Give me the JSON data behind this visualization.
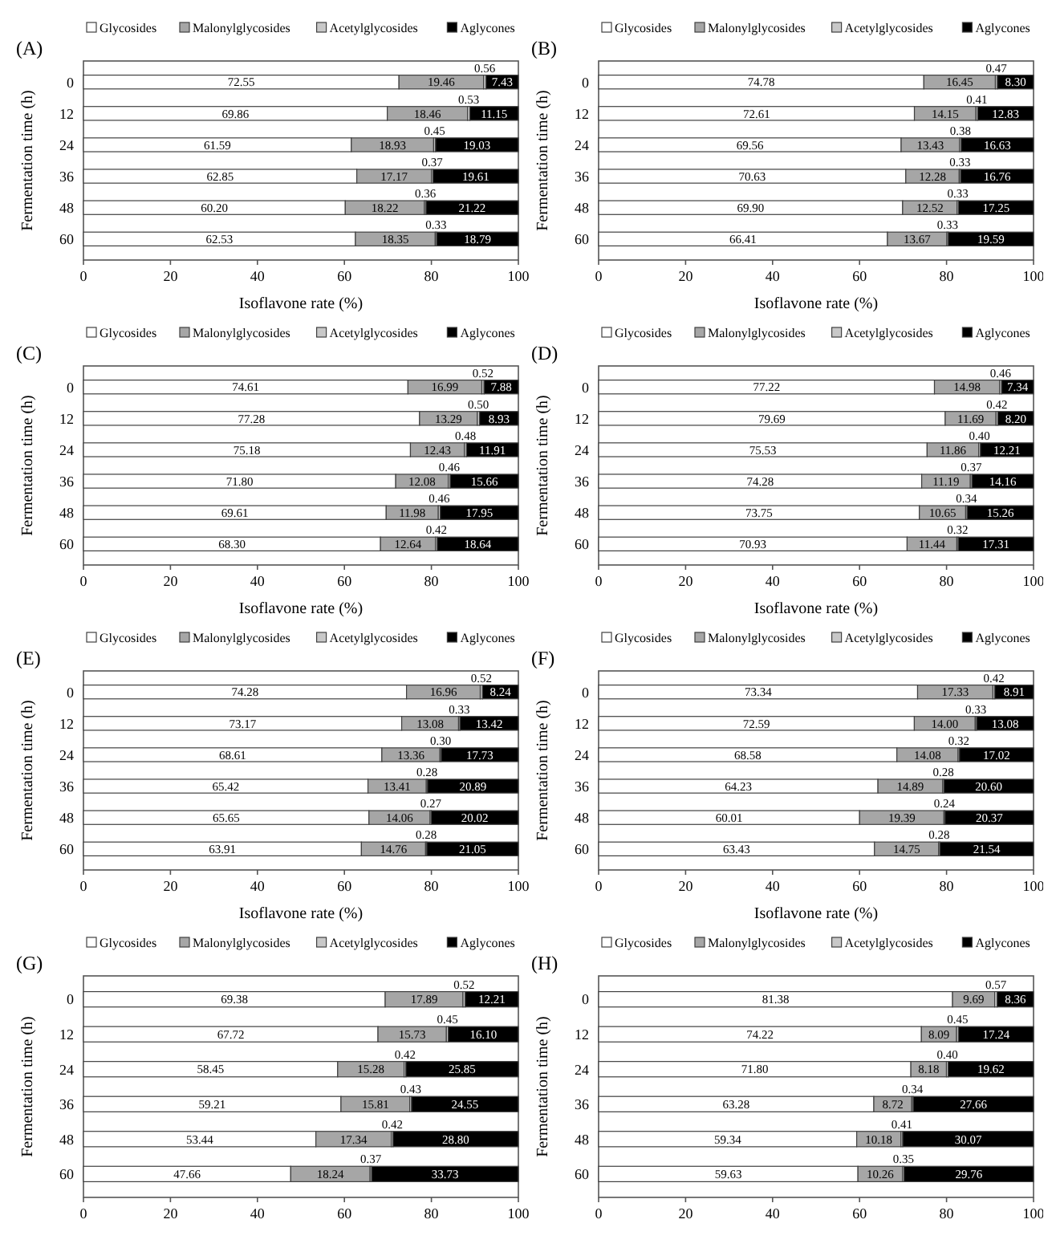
{
  "chart_data": [
    {
      "type": "bar",
      "title": "(A)",
      "orientation": "horizontal",
      "stacked": true,
      "legend": "top",
      "grid": false,
      "xlabel": "Isoflavone rate (%)",
      "ylabel": "Fermentation time (h)",
      "categories": [
        "0",
        "12",
        "24",
        "36",
        "48",
        "60"
      ],
      "xlim": [
        0,
        100
      ],
      "xticks": [
        0,
        20,
        40,
        60,
        80,
        100
      ],
      "series": [
        {
          "name": "Glycosides",
          "color": "#ffffff",
          "values": [
            72.55,
            69.86,
            61.59,
            62.85,
            60.2,
            62.53
          ],
          "value_labels": [
            "72.55",
            "69.86",
            "61.59",
            "62.85",
            "60.20",
            "62.53"
          ]
        },
        {
          "name": "Malonylglycosides",
          "color": "#a6a6a6",
          "values": [
            19.46,
            18.46,
            18.93,
            17.17,
            18.22,
            18.35
          ],
          "value_labels": [
            "19.46",
            "18.46",
            "18.93",
            "17.17",
            "18.22",
            "18.35"
          ]
        },
        {
          "name": "Acetylglycosides",
          "color": "#c8c8c8",
          "values": [
            0.56,
            0.53,
            0.45,
            0.37,
            0.36,
            0.33
          ],
          "value_labels": [
            "0.56",
            "0.53",
            "0.45",
            "0.37",
            "0.36",
            "0.33"
          ]
        },
        {
          "name": "Aglycones",
          "color": "#000000",
          "values": [
            7.43,
            11.15,
            19.03,
            19.61,
            21.22,
            18.79
          ],
          "value_labels": [
            "7.43",
            "11.15",
            "19.03",
            "19.61",
            "21.22",
            "18.79"
          ]
        }
      ]
    },
    {
      "type": "bar",
      "title": "(B)",
      "orientation": "horizontal",
      "stacked": true,
      "legend": "top",
      "grid": false,
      "xlabel": "Isoflavone rate (%)",
      "ylabel": "Fermentation time (h)",
      "categories": [
        "0",
        "12",
        "24",
        "36",
        "48",
        "60"
      ],
      "xlim": [
        0,
        100
      ],
      "xticks": [
        0,
        20,
        40,
        60,
        80,
        100
      ],
      "series": [
        {
          "name": "Glycosides",
          "color": "#ffffff",
          "values": [
            74.78,
            72.61,
            69.56,
            70.63,
            69.9,
            66.41
          ],
          "value_labels": [
            "74.78",
            "72.61",
            "69.56",
            "70.63",
            "69.90",
            "66.41"
          ]
        },
        {
          "name": "Malonylglycosides",
          "color": "#a6a6a6",
          "values": [
            16.45,
            14.15,
            13.43,
            12.28,
            12.52,
            13.67
          ],
          "value_labels": [
            "16.45",
            "14.15",
            "13.43",
            "12.28",
            "12.52",
            "13.67"
          ]
        },
        {
          "name": "Acetylglycosides",
          "color": "#c8c8c8",
          "values": [
            0.47,
            0.41,
            0.38,
            0.33,
            0.33,
            0.33
          ],
          "value_labels": [
            "0.47",
            "0.41",
            "0.38",
            "0.33",
            "0.33",
            "0.33"
          ]
        },
        {
          "name": "Aglycones",
          "color": "#000000",
          "values": [
            8.3,
            12.83,
            16.63,
            16.76,
            17.25,
            19.59
          ],
          "value_labels": [
            "8.30",
            "12.83",
            "16.63",
            "16.76",
            "17.25",
            "19.59"
          ]
        }
      ]
    },
    {
      "type": "bar",
      "title": "(C)",
      "orientation": "horizontal",
      "stacked": true,
      "legend": "top",
      "grid": false,
      "xlabel": "Isoflavone rate (%)",
      "ylabel": "Fermentation time (h)",
      "categories": [
        "0",
        "12",
        "24",
        "36",
        "48",
        "60"
      ],
      "xlim": [
        0,
        100
      ],
      "xticks": [
        0,
        20,
        40,
        60,
        80,
        100
      ],
      "series": [
        {
          "name": "Glycosides",
          "color": "#ffffff",
          "values": [
            74.61,
            77.28,
            75.18,
            71.8,
            69.61,
            68.3
          ],
          "value_labels": [
            "74.61",
            "77.28",
            "75.18",
            "71.80",
            "69.61",
            "68.30"
          ]
        },
        {
          "name": "Malonylglycosides",
          "color": "#a6a6a6",
          "values": [
            16.99,
            13.29,
            12.43,
            12.08,
            11.98,
            12.64
          ],
          "value_labels": [
            "16.99",
            "13.29",
            "12.43",
            "12.08",
            "11.98",
            "12.64"
          ]
        },
        {
          "name": "Acetylglycosides",
          "color": "#c8c8c8",
          "values": [
            0.52,
            0.5,
            0.48,
            0.46,
            0.46,
            0.42
          ],
          "value_labels": [
            "0.52",
            "0.50",
            "0.48",
            "0.46",
            "0.46",
            "0.42"
          ]
        },
        {
          "name": "Aglycones",
          "color": "#000000",
          "values": [
            7.88,
            8.93,
            11.91,
            15.66,
            17.95,
            18.64
          ],
          "value_labels": [
            "7.88",
            "8.93",
            "11.91",
            "15.66",
            "17.95",
            "18.64"
          ]
        }
      ]
    },
    {
      "type": "bar",
      "title": "(D)",
      "orientation": "horizontal",
      "stacked": true,
      "legend": "top",
      "grid": false,
      "xlabel": "Isoflavone rate (%)",
      "ylabel": "Fermentation time (h)",
      "categories": [
        "0",
        "12",
        "24",
        "36",
        "48",
        "60"
      ],
      "xlim": [
        0,
        100
      ],
      "xticks": [
        0,
        20,
        40,
        60,
        80,
        100
      ],
      "series": [
        {
          "name": "Glycosides",
          "color": "#ffffff",
          "values": [
            77.22,
            79.69,
            75.53,
            74.28,
            73.75,
            70.93
          ],
          "value_labels": [
            "77.22",
            "79.69",
            "75.53",
            "74.28",
            "73.75",
            "70.93"
          ]
        },
        {
          "name": "Malonylglycosides",
          "color": "#a6a6a6",
          "values": [
            14.98,
            11.69,
            11.86,
            11.19,
            10.65,
            11.44
          ],
          "value_labels": [
            "14.98",
            "11.69",
            "11.86",
            "11.19",
            "10.65",
            "11.44"
          ]
        },
        {
          "name": "Acetylglycosides",
          "color": "#c8c8c8",
          "values": [
            0.46,
            0.42,
            0.4,
            0.37,
            0.34,
            0.32
          ],
          "value_labels": [
            "0.46",
            "0.42",
            "0.40",
            "0.37",
            "0.34",
            "0.32"
          ]
        },
        {
          "name": "Aglycones",
          "color": "#000000",
          "values": [
            7.34,
            8.2,
            12.21,
            14.16,
            15.26,
            17.31
          ],
          "value_labels": [
            "7.34",
            "8.20",
            "12.21",
            "14.16",
            "15.26",
            "17.31"
          ]
        }
      ]
    },
    {
      "type": "bar",
      "title": "(E)",
      "orientation": "horizontal",
      "stacked": true,
      "legend": "top",
      "grid": false,
      "xlabel": "Isoflavone rate (%)",
      "ylabel": "Fermentation time (h)",
      "categories": [
        "0",
        "12",
        "24",
        "36",
        "48",
        "60"
      ],
      "xlim": [
        0,
        100
      ],
      "xticks": [
        0,
        20,
        40,
        60,
        80,
        100
      ],
      "series": [
        {
          "name": "Glycosides",
          "color": "#ffffff",
          "values": [
            74.28,
            73.17,
            68.61,
            65.42,
            65.65,
            63.91
          ],
          "value_labels": [
            "74.28",
            "73.17",
            "68.61",
            "65.42",
            "65.65",
            "63.91"
          ]
        },
        {
          "name": "Malonylglycosides",
          "color": "#a6a6a6",
          "values": [
            16.96,
            13.08,
            13.36,
            13.41,
            14.06,
            14.76
          ],
          "value_labels": [
            "16.96",
            "13.08",
            "13.36",
            "13.41",
            "14.06",
            "14.76"
          ]
        },
        {
          "name": "Acetylglycosides",
          "color": "#c8c8c8",
          "values": [
            0.52,
            0.33,
            0.3,
            0.28,
            0.27,
            0.28
          ],
          "value_labels": [
            "0.52",
            "0.33",
            "0.30",
            "0.28",
            "0.27",
            "0.28"
          ]
        },
        {
          "name": "Aglycones",
          "color": "#000000",
          "values": [
            8.24,
            13.42,
            17.73,
            20.89,
            20.02,
            21.05
          ],
          "value_labels": [
            "8.24",
            "13.42",
            "17.73",
            "20.89",
            "20.02",
            "21.05"
          ]
        }
      ]
    },
    {
      "type": "bar",
      "title": "(F)",
      "orientation": "horizontal",
      "stacked": true,
      "legend": "top",
      "grid": false,
      "xlabel": "Isoflavone rate (%)",
      "ylabel": "Fermentation time (h)",
      "categories": [
        "0",
        "12",
        "24",
        "36",
        "48",
        "60"
      ],
      "xlim": [
        0,
        100
      ],
      "xticks": [
        0,
        20,
        40,
        60,
        80,
        100
      ],
      "series": [
        {
          "name": "Glycosides",
          "color": "#ffffff",
          "values": [
            73.34,
            72.59,
            68.58,
            64.23,
            60.01,
            63.43
          ],
          "value_labels": [
            "73.34",
            "72.59",
            "68.58",
            "64.23",
            "60.01",
            "63.43"
          ]
        },
        {
          "name": "Malonylglycosides",
          "color": "#a6a6a6",
          "values": [
            17.33,
            14.0,
            14.08,
            14.89,
            19.39,
            14.75
          ],
          "value_labels": [
            "17.33",
            "14.00",
            "14.08",
            "14.89",
            "19.39",
            "14.75"
          ]
        },
        {
          "name": "Acetylglycosides",
          "color": "#c8c8c8",
          "values": [
            0.42,
            0.33,
            0.32,
            0.28,
            0.24,
            0.28
          ],
          "value_labels": [
            "0.42",
            "0.33",
            "0.32",
            "0.28",
            "0.24",
            "0.28"
          ]
        },
        {
          "name": "Aglycones",
          "color": "#000000",
          "values": [
            8.91,
            13.08,
            17.02,
            20.6,
            20.37,
            21.54
          ],
          "value_labels": [
            "8.91",
            "13.08",
            "17.02",
            "20.60",
            "20.37",
            "21.54"
          ]
        }
      ]
    },
    {
      "type": "bar",
      "title": "(G)",
      "orientation": "horizontal",
      "stacked": true,
      "legend": "top",
      "grid": false,
      "ylabel": "Fermentation time (h)",
      "categories": [
        "0",
        "12",
        "24",
        "36",
        "48",
        "60"
      ],
      "xlim": [
        0,
        100
      ],
      "xticks": [
        0,
        20,
        40,
        60,
        80,
        100
      ],
      "series": [
        {
          "name": "Glycosides",
          "color": "#ffffff",
          "values": [
            69.38,
            67.72,
            58.45,
            59.21,
            53.44,
            47.66
          ],
          "value_labels": [
            "69.38",
            "67.72",
            "58.45",
            "59.21",
            "53.44",
            "47.66"
          ]
        },
        {
          "name": "Malonylglycosides",
          "color": "#a6a6a6",
          "values": [
            17.89,
            15.73,
            15.28,
            15.81,
            17.34,
            18.24
          ],
          "value_labels": [
            "17.89",
            "15.73",
            "15.28",
            "15.81",
            "17.34",
            "18.24"
          ]
        },
        {
          "name": "Acetylglycosides",
          "color": "#c8c8c8",
          "values": [
            0.52,
            0.45,
            0.42,
            0.43,
            0.42,
            0.37
          ],
          "value_labels": [
            "0.52",
            "0.45",
            "0.42",
            "0.43",
            "0.42",
            "0.37"
          ]
        },
        {
          "name": "Aglycones",
          "color": "#000000",
          "values": [
            12.21,
            16.1,
            25.85,
            24.55,
            28.8,
            33.73
          ],
          "value_labels": [
            "12.21",
            "16.10",
            "25.85",
            "24.55",
            "28.80",
            "33.73"
          ]
        }
      ]
    },
    {
      "type": "bar",
      "title": "(H)",
      "orientation": "horizontal",
      "stacked": true,
      "legend": "top",
      "grid": false,
      "ylabel": "Fermentation time (h)",
      "categories": [
        "0",
        "12",
        "24",
        "36",
        "48",
        "60"
      ],
      "xlim": [
        0,
        100
      ],
      "xticks": [
        0,
        20,
        40,
        60,
        80,
        100
      ],
      "series": [
        {
          "name": "Glycosides",
          "color": "#ffffff",
          "values": [
            81.38,
            74.22,
            71.8,
            63.28,
            59.34,
            59.63
          ],
          "value_labels": [
            "81.38",
            "74.22",
            "71.80",
            "63.28",
            "59.34",
            "59.63"
          ]
        },
        {
          "name": "Malonylglycosides",
          "color": "#a6a6a6",
          "values": [
            9.69,
            8.09,
            8.18,
            8.72,
            10.18,
            10.26
          ],
          "value_labels": [
            "9.69",
            "8.09",
            "8.18",
            "8.72",
            "10.18",
            "10.26"
          ]
        },
        {
          "name": "Acetylglycosides",
          "color": "#c8c8c8",
          "values": [
            0.57,
            0.45,
            0.4,
            0.34,
            0.41,
            0.35
          ],
          "value_labels": [
            "0.57",
            "0.45",
            "0.40",
            "0.34",
            "0.41",
            "0.35"
          ]
        },
        {
          "name": "Aglycones",
          "color": "#000000",
          "values": [
            8.36,
            17.24,
            19.62,
            27.66,
            30.07,
            29.76
          ],
          "value_labels": [
            "8.36",
            "17.24",
            "19.62",
            "27.66",
            "30.07",
            "29.76"
          ]
        }
      ]
    }
  ]
}
